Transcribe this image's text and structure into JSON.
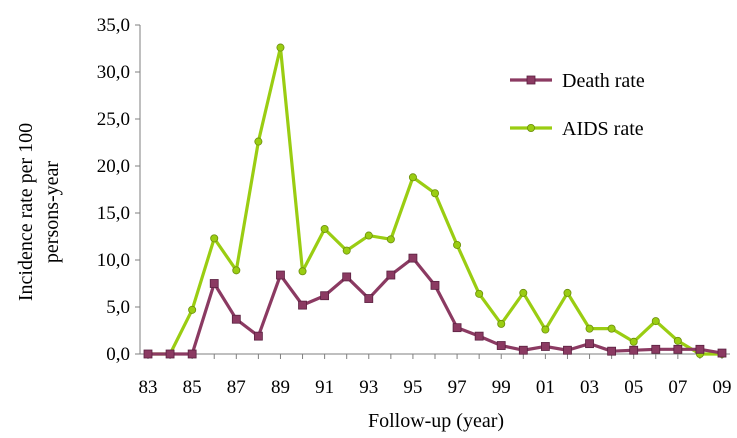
{
  "chart_data": {
    "type": "line",
    "title": "",
    "xlabel": "Follow-up (year)",
    "ylabel_lines": [
      "Incidence rate per 100",
      "persons-year"
    ],
    "categories": [
      "83",
      "84",
      "85",
      "86",
      "87",
      "88",
      "89",
      "90",
      "91",
      "92",
      "93",
      "94",
      "95",
      "96",
      "97",
      "98",
      "99",
      "00",
      "01",
      "02",
      "03",
      "04",
      "05",
      "06",
      "07",
      "08",
      "09"
    ],
    "x_tick_labels": [
      "83",
      "85",
      "87",
      "89",
      "91",
      "93",
      "95",
      "97",
      "99",
      "01",
      "03",
      "05",
      "07",
      "09"
    ],
    "y_ticks": [
      "0,0",
      "5,0",
      "10,0",
      "15,0",
      "20,0",
      "25,0",
      "30,0",
      "35,0"
    ],
    "ylim": [
      0,
      35
    ],
    "grid": false,
    "legend_position": "top-right",
    "series": [
      {
        "name": "Death rate",
        "color": "#8b3a62",
        "marker": "square",
        "values": [
          0.0,
          0.0,
          0.0,
          7.5,
          3.7,
          1.9,
          8.4,
          5.2,
          6.2,
          8.2,
          5.9,
          8.4,
          10.2,
          7.3,
          2.8,
          1.9,
          0.9,
          0.4,
          0.8,
          0.4,
          1.1,
          0.3,
          0.4,
          0.5,
          0.5,
          0.5,
          0.1
        ]
      },
      {
        "name": "AIDS rate",
        "color": "#9acd12",
        "marker": "circle",
        "values": [
          0.0,
          0.0,
          4.7,
          12.3,
          8.9,
          22.6,
          32.6,
          8.8,
          13.3,
          11.0,
          12.6,
          12.2,
          18.8,
          17.1,
          11.6,
          6.4,
          3.2,
          6.5,
          2.6,
          6.5,
          2.7,
          2.7,
          1.3,
          3.5,
          1.4,
          0.0,
          0.0
        ]
      }
    ]
  }
}
